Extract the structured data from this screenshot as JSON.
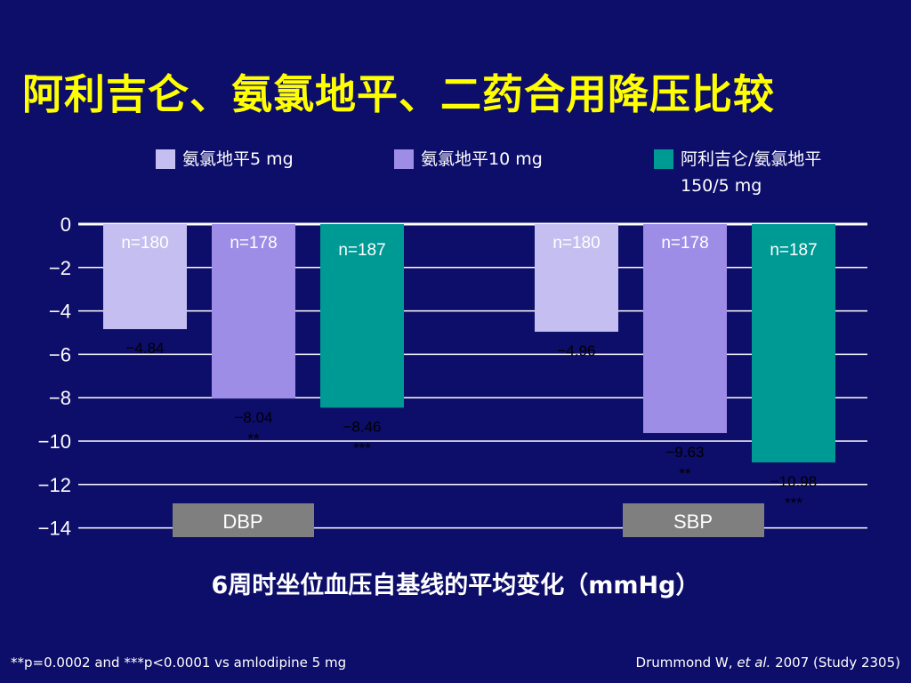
{
  "slide": {
    "title": "阿利吉仑、氨氯地平、二药合用降压比较",
    "xcaption": "6周时坐位血压自基线的平均变化（mmHg）",
    "footnote": "**p=0.0002 and  ***p<0.0001 vs amlodipine 5 mg",
    "citation_author": "Drummond W, ",
    "citation_etal": "et al.",
    "citation_rest": " 2007 (Study 2305)"
  },
  "colors": {
    "background": "#0d0d6a",
    "title": "#ffff00",
    "amlodipine5": "#c4bff0",
    "amlodipine10": "#9d8de6",
    "combo": "#009a95",
    "group_label_bg": "#7f7f7f"
  },
  "legend": [
    {
      "line1": "氨氯地平5 mg",
      "line2": "",
      "color": "#c4bff0"
    },
    {
      "line1": "氨氯地平10 mg",
      "line2": "",
      "color": "#9d8de6"
    },
    {
      "line1": "阿利吉仑/氨氯地平",
      "line2": "150/5 mg",
      "color": "#009a95"
    }
  ],
  "chart_data": {
    "type": "bar",
    "categories": [
      "DBP",
      "SBP"
    ],
    "series": [
      {
        "name": "氨氯地平5 mg",
        "values": [
          -4.84,
          -4.96
        ],
        "labels": [
          "−4.84",
          "−4.96"
        ],
        "sig": [
          "",
          ""
        ],
        "n": [
          "n=180",
          "n=180"
        ]
      },
      {
        "name": "氨氯地平10 mg",
        "values": [
          -8.04,
          -9.63
        ],
        "labels": [
          "−8.04",
          "−9.63"
        ],
        "sig": [
          "**",
          "**"
        ],
        "n": [
          "n=178",
          "n=178"
        ]
      },
      {
        "name": "阿利吉仑/氨氯地平 150/5 mg",
        "values": [
          -8.46,
          -10.98
        ],
        "labels": [
          "−8.46",
          "−10.98"
        ],
        "sig": [
          "***",
          "***"
        ],
        "n": [
          "n=187",
          "n=187"
        ]
      }
    ],
    "yticks": [
      "0",
      "−2",
      "−4",
      "−6",
      "−8",
      "−10",
      "−12",
      "−14"
    ],
    "ylim": [
      -14,
      0
    ],
    "xlabel": "6周时坐位血压自基线的平均变化（mmHg）",
    "grid": true
  }
}
